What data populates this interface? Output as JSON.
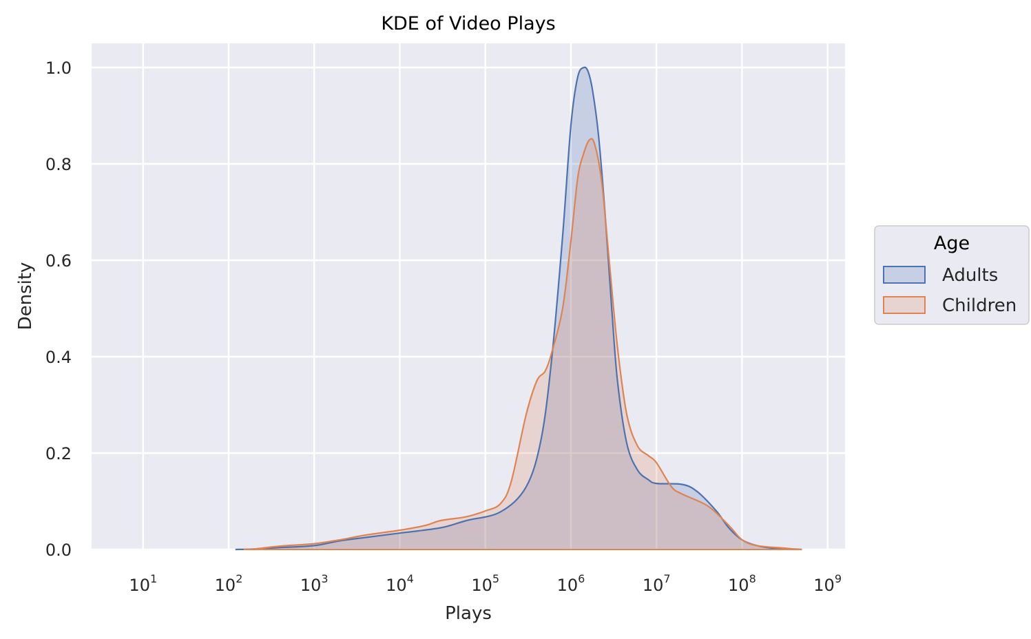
{
  "chart_data": {
    "type": "area",
    "title": "KDE of Video Plays",
    "xlabel": "Plays",
    "ylabel": "Density",
    "xscale": "log",
    "xlim": [
      2.5,
      1600000000
    ],
    "ylim": [
      0,
      1.05
    ],
    "xticks": [
      {
        "base": "10",
        "exp": "1",
        "value": 10
      },
      {
        "base": "10",
        "exp": "2",
        "value": 100
      },
      {
        "base": "10",
        "exp": "3",
        "value": 1000
      },
      {
        "base": "10",
        "exp": "4",
        "value": 10000
      },
      {
        "base": "10",
        "exp": "5",
        "value": 100000
      },
      {
        "base": "10",
        "exp": "6",
        "value": 1000000
      },
      {
        "base": "10",
        "exp": "7",
        "value": 10000000
      },
      {
        "base": "10",
        "exp": "8",
        "value": 100000000
      },
      {
        "base": "10",
        "exp": "9",
        "value": 1000000000
      }
    ],
    "yticks": [
      {
        "label": "0.0",
        "value": 0.0
      },
      {
        "label": "0.2",
        "value": 0.2
      },
      {
        "label": "0.4",
        "value": 0.4
      },
      {
        "label": "0.6",
        "value": 0.6
      },
      {
        "label": "0.8",
        "value": 0.8
      },
      {
        "label": "1.0",
        "value": 1.0
      }
    ],
    "grid": true,
    "legend": {
      "title": "Age",
      "placement": "right"
    },
    "series": [
      {
        "name": "Adults",
        "color": "#4c72b0",
        "fill": "#4c72b0",
        "points": [
          [
            120,
            0.0
          ],
          [
            200,
            0.001
          ],
          [
            400,
            0.004
          ],
          [
            1000,
            0.008
          ],
          [
            2000,
            0.018
          ],
          [
            4000,
            0.025
          ],
          [
            10000,
            0.034
          ],
          [
            30000,
            0.045
          ],
          [
            60000,
            0.06
          ],
          [
            150000,
            0.078
          ],
          [
            300000,
            0.13
          ],
          [
            450000,
            0.23
          ],
          [
            600000,
            0.4
          ],
          [
            800000,
            0.65
          ],
          [
            1000000,
            0.88
          ],
          [
            1200000,
            0.98
          ],
          [
            1420000,
            1.0
          ],
          [
            1600000,
            0.99
          ],
          [
            1800000,
            0.95
          ],
          [
            2100000,
            0.86
          ],
          [
            2500000,
            0.7
          ],
          [
            3000000,
            0.5
          ],
          [
            3500000,
            0.35
          ],
          [
            4500000,
            0.22
          ],
          [
            6000000,
            0.165
          ],
          [
            8000000,
            0.145
          ],
          [
            10000000,
            0.137
          ],
          [
            20000000,
            0.135
          ],
          [
            30000000,
            0.12
          ],
          [
            50000000,
            0.08
          ],
          [
            70000000,
            0.045
          ],
          [
            100000000,
            0.02
          ],
          [
            150000000,
            0.008
          ],
          [
            250000000,
            0.002
          ],
          [
            500000000,
            0.0
          ]
        ]
      },
      {
        "name": "Children",
        "color": "#dd8452",
        "fill": "#dd8452",
        "points": [
          [
            150,
            0.0
          ],
          [
            200,
            0.001
          ],
          [
            400,
            0.007
          ],
          [
            1000,
            0.012
          ],
          [
            2000,
            0.02
          ],
          [
            4000,
            0.03
          ],
          [
            10000,
            0.04
          ],
          [
            20000,
            0.05
          ],
          [
            30000,
            0.06
          ],
          [
            60000,
            0.068
          ],
          [
            100000,
            0.08
          ],
          [
            150000,
            0.095
          ],
          [
            200000,
            0.14
          ],
          [
            300000,
            0.28
          ],
          [
            400000,
            0.35
          ],
          [
            500000,
            0.37
          ],
          [
            600000,
            0.41
          ],
          [
            800000,
            0.5
          ],
          [
            1000000,
            0.64
          ],
          [
            1200000,
            0.77
          ],
          [
            1400000,
            0.82
          ],
          [
            1650000,
            0.85
          ],
          [
            1900000,
            0.84
          ],
          [
            2300000,
            0.76
          ],
          [
            2800000,
            0.6
          ],
          [
            3500000,
            0.42
          ],
          [
            4500000,
            0.28
          ],
          [
            6000000,
            0.215
          ],
          [
            8000000,
            0.195
          ],
          [
            10000000,
            0.18
          ],
          [
            15000000,
            0.13
          ],
          [
            20000000,
            0.115
          ],
          [
            40000000,
            0.09
          ],
          [
            70000000,
            0.05
          ],
          [
            100000000,
            0.02
          ],
          [
            150000000,
            0.008
          ],
          [
            300000000,
            0.003
          ],
          [
            500000000,
            0.0
          ]
        ]
      }
    ]
  }
}
